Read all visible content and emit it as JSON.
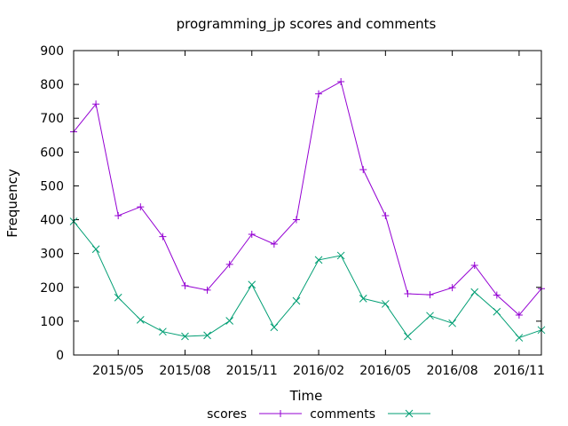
{
  "chart_data": {
    "type": "line",
    "title": "programming_jp scores and comments",
    "xlabel": "Time",
    "ylabel": "Frequency",
    "ylim": [
      0,
      900
    ],
    "yticks": [
      0,
      100,
      200,
      300,
      400,
      500,
      600,
      700,
      800,
      900
    ],
    "xlim": [
      "2015-03",
      "2016-12"
    ],
    "xticks": [
      {
        "label": "2015/05",
        "month": "2015-05"
      },
      {
        "label": "2015/08",
        "month": "2015-08"
      },
      {
        "label": "2015/11",
        "month": "2015-11"
      },
      {
        "label": "2016/02",
        "month": "2016-02"
      },
      {
        "label": "2016/05",
        "month": "2016-05"
      },
      {
        "label": "2016/08",
        "month": "2016-08"
      },
      {
        "label": "2016/11",
        "month": "2016-11"
      }
    ],
    "grid": false,
    "legend_position": "bottom",
    "x": [
      "2015-03",
      "2015-04",
      "2015-05",
      "2015-06",
      "2015-07",
      "2015-08",
      "2015-09",
      "2015-10",
      "2015-11",
      "2015-12",
      "2016-01",
      "2016-02",
      "2016-03",
      "2016-04",
      "2016-05",
      "2016-06",
      "2016-07",
      "2016-08",
      "2016-09",
      "2016-10",
      "2016-11",
      "2016-12"
    ],
    "series": [
      {
        "name": "scores",
        "color": "#9400d3",
        "marker": "plus",
        "values": [
          660,
          742,
          412,
          438,
          350,
          205,
          192,
          268,
          357,
          328,
          400,
          772,
          808,
          548,
          412,
          181,
          178,
          199,
          265,
          177,
          118,
          196
        ]
      },
      {
        "name": "comments",
        "color": "#009e73",
        "marker": "cross",
        "values": [
          395,
          313,
          170,
          104,
          69,
          55,
          58,
          101,
          208,
          82,
          160,
          281,
          294,
          167,
          151,
          55,
          116,
          94,
          186,
          128,
          51,
          74
        ]
      }
    ]
  }
}
